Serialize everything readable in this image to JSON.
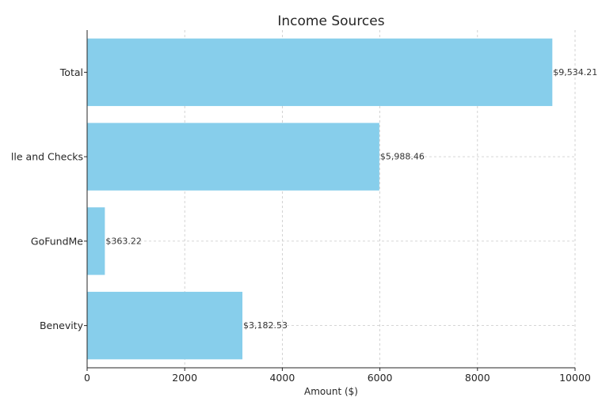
{
  "chart_data": {
    "type": "bar",
    "orientation": "horizontal",
    "title": "Income Sources",
    "xlabel": "Amount ($)",
    "ylabel": "",
    "categories": [
      "Total",
      "lle and Checks",
      "GoFundMe",
      "Benevity"
    ],
    "values": [
      9534.21,
      5988.46,
      363.22,
      3182.53
    ],
    "value_labels": [
      "$9,534.21",
      "$5,988.46",
      "$363.22",
      "$3,182.53"
    ],
    "xlim": [
      0,
      10000
    ],
    "xticks": [
      0,
      2000,
      4000,
      6000,
      8000,
      10000
    ],
    "xtick_labels": [
      "0",
      "2000",
      "4000",
      "6000",
      "8000",
      "10000"
    ],
    "grid": true,
    "bar_color": "#87ceeb"
  }
}
